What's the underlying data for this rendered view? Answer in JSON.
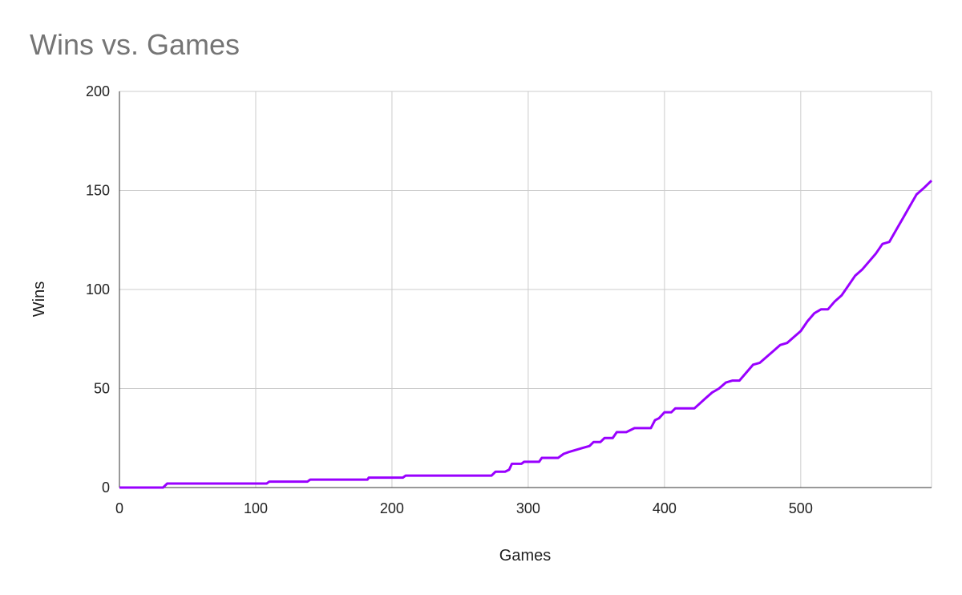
{
  "chart_data": {
    "type": "line",
    "title": "Wins vs. Games",
    "x_label": "Games",
    "y_label": "Wins",
    "xlim": [
      0,
      596
    ],
    "ylim": [
      0,
      200
    ],
    "xticks": [
      0,
      100,
      200,
      300,
      400,
      500
    ],
    "yticks": [
      0,
      50,
      100,
      150,
      200
    ],
    "grid": true,
    "x": [
      0,
      32,
      35,
      108,
      110,
      138,
      140,
      182,
      183,
      208,
      210,
      273,
      276,
      283,
      286,
      288,
      295,
      297,
      308,
      310,
      322,
      326,
      330,
      335,
      340,
      345,
      348,
      353,
      356,
      362,
      365,
      372,
      375,
      378,
      390,
      393,
      396,
      400,
      405,
      408,
      422,
      430,
      435,
      440,
      445,
      450,
      455,
      460,
      465,
      470,
      475,
      480,
      485,
      490,
      495,
      500,
      505,
      510,
      515,
      520,
      525,
      530,
      535,
      540,
      545,
      550,
      555,
      560,
      565,
      570,
      575,
      580,
      585,
      590,
      596
    ],
    "series": [
      {
        "name": "Wins",
        "color": "#9900ff",
        "values": [
          0,
          0,
          2,
          2,
          3,
          3,
          4,
          4,
          5,
          5,
          6,
          6,
          8,
          8,
          9,
          12,
          12,
          13,
          13,
          15,
          15,
          17,
          18,
          19,
          20,
          21,
          23,
          23,
          25,
          25,
          28,
          28,
          29,
          30,
          30,
          34,
          35,
          38,
          38,
          40,
          40,
          45,
          48,
          50,
          53,
          54,
          54,
          58,
          62,
          63,
          66,
          69,
          72,
          73,
          76,
          79,
          84,
          88,
          90,
          90,
          94,
          97,
          102,
          107,
          110,
          114,
          118,
          123,
          124,
          130,
          136,
          142,
          148,
          151,
          155
        ]
      }
    ]
  }
}
